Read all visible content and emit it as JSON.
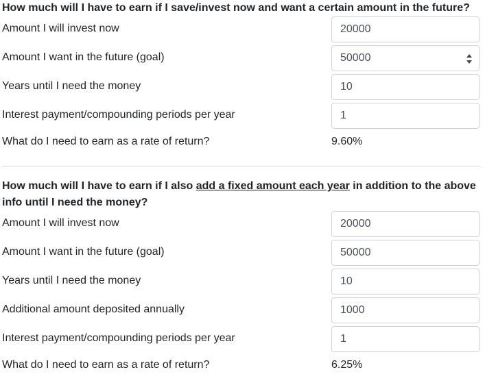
{
  "section1": {
    "heading": "How much will I have to earn if I save/invest now and want a certain amount in the future?",
    "fields": [
      {
        "label": "Amount I will invest now",
        "value": "20000"
      },
      {
        "label": "Amount I want in the future (goal)",
        "value": "50000"
      },
      {
        "label": "Years until I need the money",
        "value": "10"
      },
      {
        "label": "Interest payment/compounding periods per year",
        "value": "1"
      }
    ],
    "result": {
      "label": "What do I need to earn as a rate of return?",
      "value": "9.60%"
    }
  },
  "section2": {
    "heading_prefix": "How much will I have to earn if I also ",
    "heading_link": "add a fixed amount each year",
    "heading_suffix": " in addition to the above info until I need the money?",
    "fields": [
      {
        "label": "Amount I will invest now",
        "value": "20000"
      },
      {
        "label": "Amount I want in the future (goal)",
        "value": "50000"
      },
      {
        "label": "Years until I need the money",
        "value": "10"
      },
      {
        "label": "Additional amount deposited annually",
        "value": "1000"
      },
      {
        "label": "Interest payment/compounding periods per year",
        "value": "1"
      }
    ],
    "result": {
      "label": "What do I need to earn as a rate of return?",
      "value": "6.25%"
    }
  }
}
